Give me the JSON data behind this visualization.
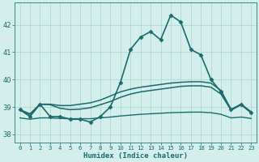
{
  "title": "",
  "xlabel": "Humidex (Indice chaleur)",
  "ylabel": "",
  "bg_color": "#d4eeec",
  "grid_color": "#afd8d4",
  "line_color": "#1a6b6b",
  "xlim": [
    -0.5,
    23.5
  ],
  "ylim": [
    37.7,
    42.8
  ],
  "yticks": [
    38,
    39,
    40,
    41,
    42
  ],
  "xticks": [
    0,
    1,
    2,
    3,
    4,
    5,
    6,
    7,
    8,
    9,
    10,
    11,
    12,
    13,
    14,
    15,
    16,
    17,
    18,
    19,
    20,
    21,
    22,
    23
  ],
  "series": [
    {
      "x": [
        0,
        1,
        2,
        3,
        4,
        5,
        6,
        7,
        8,
        9,
        10,
        11,
        12,
        13,
        14,
        15,
        16,
        17,
        18,
        19,
        20,
        21,
        22,
        23
      ],
      "y": [
        38.9,
        38.65,
        39.1,
        38.65,
        38.65,
        38.55,
        38.55,
        38.45,
        38.65,
        39.0,
        39.9,
        41.1,
        41.55,
        41.75,
        41.45,
        42.35,
        42.1,
        41.1,
        40.9,
        40.0,
        39.55,
        38.9,
        39.1,
        38.8
      ],
      "marker": "D",
      "markersize": 2.5,
      "linewidth": 1.2,
      "has_marker": true
    },
    {
      "x": [
        0,
        1,
        2,
        3,
        4,
        5,
        6,
        7,
        8,
        9,
        10,
        11,
        12,
        13,
        14,
        15,
        16,
        17,
        18,
        19,
        20,
        21,
        22,
        23
      ],
      "y": [
        38.9,
        38.75,
        39.1,
        39.1,
        39.05,
        39.05,
        39.1,
        39.15,
        39.25,
        39.4,
        39.55,
        39.65,
        39.72,
        39.77,
        39.82,
        39.87,
        39.9,
        39.92,
        39.92,
        39.87,
        39.6,
        38.9,
        39.1,
        38.82
      ],
      "marker": null,
      "markersize": 0,
      "linewidth": 1.1,
      "has_marker": false
    },
    {
      "x": [
        0,
        1,
        2,
        3,
        4,
        5,
        6,
        7,
        8,
        9,
        10,
        11,
        12,
        13,
        14,
        15,
        16,
        17,
        18,
        19,
        20,
        21,
        22,
        23
      ],
      "y": [
        38.88,
        38.72,
        39.1,
        39.08,
        38.95,
        38.9,
        38.92,
        38.97,
        39.08,
        39.2,
        39.35,
        39.47,
        39.55,
        39.6,
        39.65,
        39.7,
        39.75,
        39.77,
        39.77,
        39.72,
        39.47,
        38.88,
        39.08,
        38.78
      ],
      "marker": null,
      "markersize": 0,
      "linewidth": 1.1,
      "has_marker": false
    },
    {
      "x": [
        0,
        1,
        2,
        3,
        4,
        5,
        6,
        7,
        8,
        9,
        10,
        11,
        12,
        13,
        14,
        15,
        16,
        17,
        18,
        19,
        20,
        21,
        22,
        23
      ],
      "y": [
        38.6,
        38.55,
        38.6,
        38.6,
        38.58,
        38.57,
        38.57,
        38.57,
        38.6,
        38.63,
        38.67,
        38.7,
        38.73,
        38.75,
        38.77,
        38.79,
        38.8,
        38.81,
        38.81,
        38.79,
        38.73,
        38.6,
        38.63,
        38.58
      ],
      "marker": null,
      "markersize": 0,
      "linewidth": 1.0,
      "has_marker": false
    }
  ]
}
